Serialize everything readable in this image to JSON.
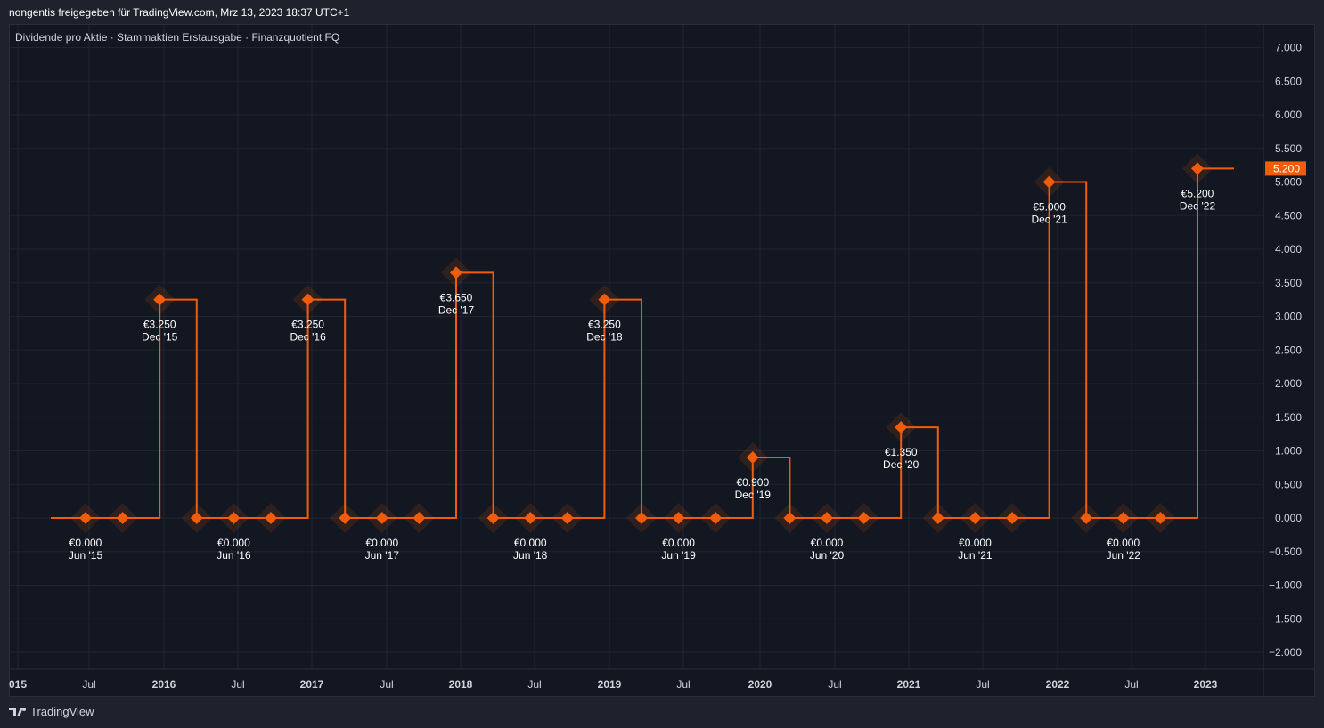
{
  "header": {
    "text": "nongentis freigegeben für TradingView.com, Mrz 13, 2023 18:37 UTC+1"
  },
  "legend": {
    "text": "Dividende pro Aktie · Stammaktien Erstausgabe · Finanzquotient FQ"
  },
  "footer": {
    "brand": "TradingView"
  },
  "colors": {
    "series": "#f05c0a",
    "background": "#131722",
    "grid": "#1f2430",
    "text": "#d1d4dc",
    "price_tag_text": "#ffffff"
  },
  "chart_data": {
    "type": "line",
    "style": "step",
    "ylim": [
      -2.0,
      7.0
    ],
    "yticks": [
      "7.000",
      "6.500",
      "6.000",
      "5.500",
      "5.000",
      "4.500",
      "4.000",
      "3.500",
      "3.000",
      "2.500",
      "2.000",
      "1.500",
      "1.000",
      "0.500",
      "0.000",
      "−0.500",
      "−1.000",
      "−1.500",
      "−2.000"
    ],
    "xticks": [
      "015",
      "Jul",
      "2016",
      "Jul",
      "2017",
      "Jul",
      "2018",
      "Jul",
      "2019",
      "Jul",
      "2020",
      "Jul",
      "2021",
      "Jul",
      "2022",
      "Jul",
      "2023"
    ],
    "last_value_label": "5.200",
    "series": [
      {
        "points": [
          {
            "x": "2015-06",
            "y": 0.0
          },
          {
            "x": "2015-09",
            "y": 0.0
          },
          {
            "x": "2015-12",
            "y": 3.25
          },
          {
            "x": "2016-03",
            "y": 0.0
          },
          {
            "x": "2016-06",
            "y": 0.0
          },
          {
            "x": "2016-09",
            "y": 0.0
          },
          {
            "x": "2016-12",
            "y": 3.25
          },
          {
            "x": "2017-03",
            "y": 0.0
          },
          {
            "x": "2017-06",
            "y": 0.0
          },
          {
            "x": "2017-09",
            "y": 0.0
          },
          {
            "x": "2017-12",
            "y": 3.65
          },
          {
            "x": "2018-03",
            "y": 0.0
          },
          {
            "x": "2018-06",
            "y": 0.0
          },
          {
            "x": "2018-09",
            "y": 0.0
          },
          {
            "x": "2018-12",
            "y": 3.25
          },
          {
            "x": "2019-03",
            "y": 0.0
          },
          {
            "x": "2019-06",
            "y": 0.0
          },
          {
            "x": "2019-09",
            "y": 0.0
          },
          {
            "x": "2019-12",
            "y": 0.9
          },
          {
            "x": "2020-03",
            "y": 0.0
          },
          {
            "x": "2020-06",
            "y": 0.0
          },
          {
            "x": "2020-09",
            "y": 0.0
          },
          {
            "x": "2020-12",
            "y": 1.35
          },
          {
            "x": "2021-03",
            "y": 0.0
          },
          {
            "x": "2021-06",
            "y": 0.0
          },
          {
            "x": "2021-09",
            "y": 0.0
          },
          {
            "x": "2021-12",
            "y": 5.0
          },
          {
            "x": "2022-03",
            "y": 0.0
          },
          {
            "x": "2022-06",
            "y": 0.0
          },
          {
            "x": "2022-09",
            "y": 0.0
          },
          {
            "x": "2022-12",
            "y": 5.2
          }
        ]
      }
    ],
    "annotations": [
      {
        "x": "2015-06",
        "value": "€0.000",
        "date": "Jun '15",
        "position": "below"
      },
      {
        "x": "2015-12",
        "value": "€3.250",
        "date": "Dec '15",
        "position": "below"
      },
      {
        "x": "2016-06",
        "value": "€0.000",
        "date": "Jun '16",
        "position": "below"
      },
      {
        "x": "2016-12",
        "value": "€3.250",
        "date": "Dec '16",
        "position": "below"
      },
      {
        "x": "2017-06",
        "value": "€0.000",
        "date": "Jun '17",
        "position": "below"
      },
      {
        "x": "2017-12",
        "value": "€3.650",
        "date": "Dec '17",
        "position": "below"
      },
      {
        "x": "2018-06",
        "value": "€0.000",
        "date": "Jun '18",
        "position": "below"
      },
      {
        "x": "2018-12",
        "value": "€3.250",
        "date": "Dec '18",
        "position": "below"
      },
      {
        "x": "2019-06",
        "value": "€0.000",
        "date": "Jun '19",
        "position": "below"
      },
      {
        "x": "2019-12",
        "value": "€0.900",
        "date": "Dec '19",
        "position": "below"
      },
      {
        "x": "2020-06",
        "value": "€0.000",
        "date": "Jun '20",
        "position": "below"
      },
      {
        "x": "2020-12",
        "value": "€1.350",
        "date": "Dec '20",
        "position": "below"
      },
      {
        "x": "2021-06",
        "value": "€0.000",
        "date": "Jun '21",
        "position": "below"
      },
      {
        "x": "2021-12",
        "value": "€5.000",
        "date": "Dec '21",
        "position": "below"
      },
      {
        "x": "2022-06",
        "value": "€0.000",
        "date": "Jun '22",
        "position": "below"
      },
      {
        "x": "2022-12",
        "value": "€5.200",
        "date": "Dec '22",
        "position": "below"
      }
    ]
  }
}
